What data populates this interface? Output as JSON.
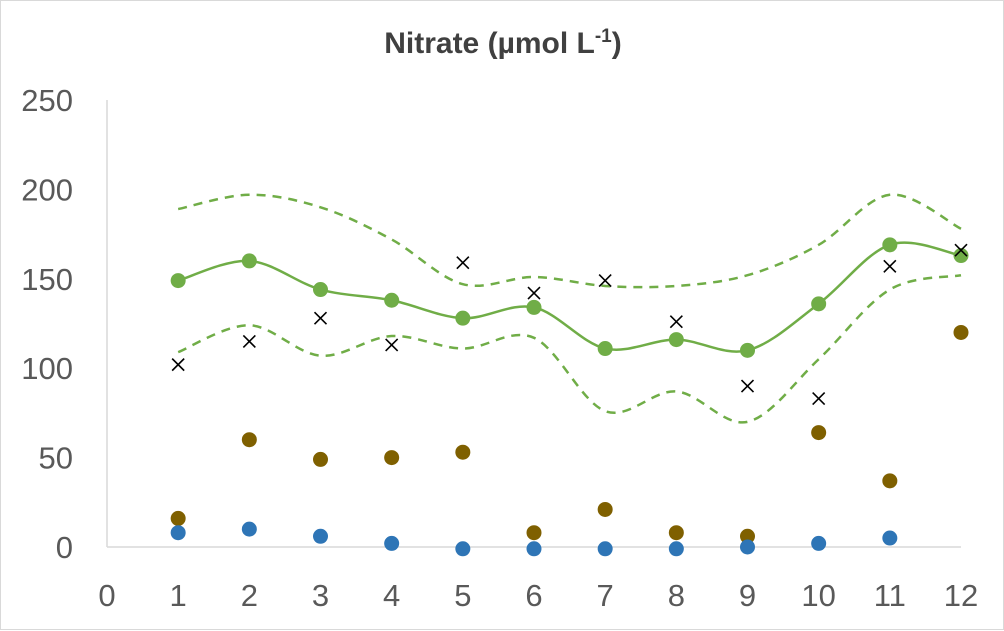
{
  "chart_data": {
    "type": "scatter",
    "title": "Nitrate (µmol L",
    "title_superscript": "-1",
    "title_suffix": ")",
    "xlabel": "",
    "ylabel": "",
    "xlim": [
      0,
      12
    ],
    "ylim": [
      0,
      250
    ],
    "x_ticks": [
      0,
      1,
      2,
      3,
      4,
      5,
      6,
      7,
      8,
      9,
      10,
      11,
      12
    ],
    "y_ticks": [
      0,
      50,
      100,
      150,
      200,
      250
    ],
    "grid": false,
    "legend": "none",
    "colors": {
      "green": "#70ad47",
      "brown": "#7f6000",
      "blue": "#2e75b6",
      "cross": "#000000",
      "axis": "#d9d9d9",
      "text": "#595959",
      "title": "#404040"
    },
    "series": [
      {
        "name": "mean",
        "style": "line-smooth-markers",
        "x": [
          1,
          2,
          3,
          4,
          5,
          6,
          7,
          8,
          9,
          10,
          11,
          12
        ],
        "values": [
          149,
          160,
          144,
          138,
          128,
          134,
          111,
          116,
          110,
          136,
          169,
          163
        ]
      },
      {
        "name": "upper-bound",
        "style": "dashed-smooth",
        "x": [
          1,
          2,
          3,
          4,
          5,
          6,
          7,
          8,
          9,
          10,
          11,
          12
        ],
        "values": [
          189,
          197,
          190,
          172,
          147,
          151,
          146,
          146,
          152,
          169,
          197,
          178
        ]
      },
      {
        "name": "lower-bound",
        "style": "dashed-smooth",
        "x": [
          1,
          2,
          3,
          4,
          5,
          6,
          7,
          8,
          9,
          10,
          11,
          12
        ],
        "values": [
          109,
          124,
          107,
          118,
          111,
          117,
          76,
          87,
          70,
          105,
          144,
          152
        ]
      },
      {
        "name": "crosses",
        "style": "cross-markers",
        "x": [
          1,
          2,
          3,
          4,
          5,
          6,
          7,
          8,
          9,
          10,
          11,
          12
        ],
        "values": [
          102,
          115,
          128,
          113,
          159,
          142,
          149,
          126,
          90,
          83,
          157,
          166
        ]
      },
      {
        "name": "brown-points",
        "style": "circle-markers",
        "x": [
          1,
          2,
          3,
          4,
          5,
          6,
          7,
          8,
          9,
          10,
          11,
          12
        ],
        "values": [
          16,
          60,
          49,
          50,
          53,
          8,
          21,
          8,
          6,
          64,
          37,
          120
        ]
      },
      {
        "name": "blue-points",
        "style": "circle-markers",
        "x": [
          1,
          2,
          3,
          4,
          5,
          6,
          7,
          8,
          9,
          10,
          11
        ],
        "values": [
          8,
          10,
          6,
          2,
          -1,
          -1,
          -1,
          -1,
          0,
          2,
          5
        ]
      }
    ]
  }
}
